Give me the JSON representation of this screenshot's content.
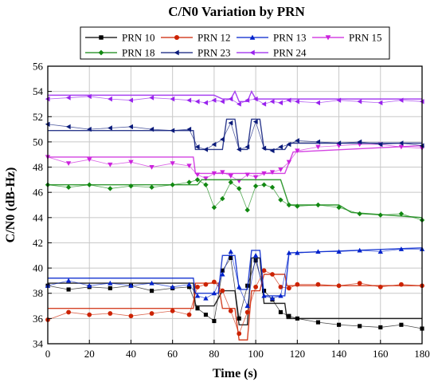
{
  "chart_data": {
    "type": "line",
    "title": "C/N0 Variation by PRN",
    "xlabel": "Time (s)",
    "ylabel": "C/N0 (dB-Hz)",
    "xlim": [
      0,
      180
    ],
    "ylim": [
      34,
      56
    ],
    "xticks": [
      "0",
      "20",
      "40",
      "60",
      "80",
      "100",
      "120",
      "140",
      "160",
      "180"
    ],
    "yticks": [
      "34",
      "36",
      "38",
      "40",
      "42",
      "44",
      "46",
      "48",
      "50",
      "52",
      "54",
      "56"
    ],
    "grid": true,
    "legend_position": "top",
    "series": [
      {
        "name": "PRN 10",
        "color": "#000000",
        "marker": "square",
        "markers": [
          [
            0,
            38.6
          ],
          [
            10,
            38.3
          ],
          [
            20,
            38.5
          ],
          [
            30,
            38.4
          ],
          [
            40,
            38.6
          ],
          [
            50,
            38.2
          ],
          [
            60,
            38.4
          ],
          [
            68,
            38.5
          ],
          [
            72,
            36.8
          ],
          [
            76,
            36.3
          ],
          [
            80,
            35.8
          ],
          [
            84,
            39.8
          ],
          [
            88,
            40.8
          ],
          [
            92,
            36.0
          ],
          [
            96,
            38.6
          ],
          [
            100,
            40.6
          ],
          [
            104,
            38.2
          ],
          [
            108,
            37.5
          ],
          [
            112,
            36.5
          ],
          [
            116,
            36.2
          ],
          [
            120,
            36.0
          ],
          [
            130,
            35.7
          ],
          [
            140,
            35.5
          ],
          [
            150,
            35.4
          ],
          [
            160,
            35.3
          ],
          [
            170,
            35.5
          ],
          [
            180,
            35.2
          ]
        ],
        "fit": [
          [
            0,
            38.8
          ],
          [
            70,
            38.8
          ],
          [
            71,
            37.0
          ],
          [
            80,
            37.0
          ],
          [
            84,
            38.2
          ],
          [
            90,
            38.2
          ],
          [
            92,
            35.5
          ],
          [
            96,
            35.5
          ],
          [
            98,
            40.8
          ],
          [
            102,
            40.8
          ],
          [
            104,
            37.2
          ],
          [
            114,
            37.2
          ],
          [
            115,
            36.0
          ],
          [
            180,
            36.0
          ]
        ]
      },
      {
        "name": "PRN 12",
        "color": "#cc2200",
        "marker": "circle",
        "markers": [
          [
            0,
            35.9
          ],
          [
            10,
            36.5
          ],
          [
            20,
            36.3
          ],
          [
            30,
            36.4
          ],
          [
            40,
            36.2
          ],
          [
            50,
            36.4
          ],
          [
            60,
            36.6
          ],
          [
            68,
            36.3
          ],
          [
            72,
            38.5
          ],
          [
            76,
            38.7
          ],
          [
            80,
            38.9
          ],
          [
            84,
            38.2
          ],
          [
            88,
            36.6
          ],
          [
            92,
            34.8
          ],
          [
            96,
            36.5
          ],
          [
            100,
            38.5
          ],
          [
            104,
            39.8
          ],
          [
            108,
            39.5
          ],
          [
            112,
            38.5
          ],
          [
            116,
            38.4
          ],
          [
            120,
            38.7
          ],
          [
            130,
            38.7
          ],
          [
            140,
            38.6
          ],
          [
            150,
            38.8
          ],
          [
            160,
            38.5
          ],
          [
            170,
            38.7
          ],
          [
            180,
            38.6
          ]
        ],
        "fit": [
          [
            0,
            36.8
          ],
          [
            70,
            36.8
          ],
          [
            71,
            38.8
          ],
          [
            82,
            38.8
          ],
          [
            84,
            36.8
          ],
          [
            90,
            36.8
          ],
          [
            92,
            34.3
          ],
          [
            96,
            34.3
          ],
          [
            98,
            38.2
          ],
          [
            102,
            38.2
          ],
          [
            104,
            39.5
          ],
          [
            114,
            39.5
          ],
          [
            115,
            38.6
          ],
          [
            180,
            38.6
          ]
        ]
      },
      {
        "name": "PRN 13",
        "color": "#0022cc",
        "marker": "triangle-up",
        "markers": [
          [
            0,
            38.6
          ],
          [
            10,
            39.0
          ],
          [
            20,
            38.6
          ],
          [
            30,
            38.8
          ],
          [
            40,
            38.6
          ],
          [
            50,
            38.8
          ],
          [
            60,
            38.5
          ],
          [
            68,
            38.7
          ],
          [
            72,
            37.8
          ],
          [
            76,
            37.6
          ],
          [
            80,
            38.0
          ],
          [
            84,
            39.5
          ],
          [
            88,
            41.3
          ],
          [
            92,
            38.5
          ],
          [
            96,
            37.0
          ],
          [
            100,
            41.0
          ],
          [
            104,
            37.8
          ],
          [
            108,
            37.6
          ],
          [
            112,
            37.8
          ],
          [
            116,
            41.2
          ],
          [
            120,
            41.2
          ],
          [
            130,
            41.3
          ],
          [
            140,
            41.3
          ],
          [
            150,
            41.4
          ],
          [
            160,
            41.3
          ],
          [
            170,
            41.5
          ],
          [
            180,
            41.5
          ]
        ],
        "fit": [
          [
            0,
            39.2
          ],
          [
            70,
            39.2
          ],
          [
            71,
            38.0
          ],
          [
            82,
            38.0
          ],
          [
            84,
            41.0
          ],
          [
            90,
            41.0
          ],
          [
            92,
            38.3
          ],
          [
            96,
            38.3
          ],
          [
            98,
            41.4
          ],
          [
            102,
            41.4
          ],
          [
            104,
            37.8
          ],
          [
            114,
            37.8
          ],
          [
            116,
            41.2
          ],
          [
            180,
            41.6
          ]
        ]
      },
      {
        "name": "PRN 15",
        "color": "#cc22dd",
        "marker": "triangle-down",
        "markers": [
          [
            0,
            48.8
          ],
          [
            10,
            48.3
          ],
          [
            20,
            48.6
          ],
          [
            30,
            48.2
          ],
          [
            40,
            48.4
          ],
          [
            50,
            48.0
          ],
          [
            60,
            48.3
          ],
          [
            68,
            48.1
          ],
          [
            72,
            47.4
          ],
          [
            76,
            47.1
          ],
          [
            80,
            47.5
          ],
          [
            84,
            47.6
          ],
          [
            88,
            47.3
          ],
          [
            92,
            46.9
          ],
          [
            96,
            47.4
          ],
          [
            100,
            47.2
          ],
          [
            104,
            47.5
          ],
          [
            108,
            47.6
          ],
          [
            112,
            47.8
          ],
          [
            116,
            48.4
          ],
          [
            120,
            49.3
          ],
          [
            130,
            49.6
          ],
          [
            140,
            49.7
          ],
          [
            150,
            49.8
          ],
          [
            160,
            49.8
          ],
          [
            170,
            49.6
          ],
          [
            180,
            49.5
          ]
        ],
        "fit": [
          [
            0,
            48.8
          ],
          [
            70,
            48.8
          ],
          [
            71,
            47.5
          ],
          [
            114,
            47.5
          ],
          [
            118,
            49.2
          ],
          [
            180,
            49.7
          ]
        ]
      },
      {
        "name": "PRN 18",
        "color": "#118811",
        "marker": "diamond",
        "markers": [
          [
            0,
            46.6
          ],
          [
            10,
            46.4
          ],
          [
            20,
            46.6
          ],
          [
            30,
            46.3
          ],
          [
            40,
            46.5
          ],
          [
            50,
            46.4
          ],
          [
            60,
            46.6
          ],
          [
            68,
            46.8
          ],
          [
            72,
            47.0
          ],
          [
            76,
            46.6
          ],
          [
            80,
            44.8
          ],
          [
            84,
            45.5
          ],
          [
            88,
            46.8
          ],
          [
            92,
            46.3
          ],
          [
            96,
            44.6
          ],
          [
            100,
            46.5
          ],
          [
            104,
            46.6
          ],
          [
            108,
            46.4
          ],
          [
            112,
            45.4
          ],
          [
            116,
            45.0
          ],
          [
            120,
            44.9
          ],
          [
            130,
            45.0
          ],
          [
            140,
            44.8
          ],
          [
            150,
            44.3
          ],
          [
            160,
            44.2
          ],
          [
            170,
            44.3
          ],
          [
            180,
            43.8
          ]
        ],
        "fit": [
          [
            0,
            46.6
          ],
          [
            72,
            46.6
          ],
          [
            74,
            47.0
          ],
          [
            112,
            47.0
          ],
          [
            116,
            45.0
          ],
          [
            140,
            45.0
          ],
          [
            146,
            44.4
          ],
          [
            180,
            44.0
          ]
        ]
      },
      {
        "name": "PRN 23",
        "color": "#0a1a7a",
        "marker": "triangle-left",
        "markers": [
          [
            0,
            51.4
          ],
          [
            10,
            51.2
          ],
          [
            20,
            51.0
          ],
          [
            30,
            51.1
          ],
          [
            40,
            51.2
          ],
          [
            50,
            51.0
          ],
          [
            60,
            50.9
          ],
          [
            68,
            51.0
          ],
          [
            72,
            49.6
          ],
          [
            76,
            49.4
          ],
          [
            80,
            49.8
          ],
          [
            84,
            50.2
          ],
          [
            88,
            51.5
          ],
          [
            92,
            49.4
          ],
          [
            96,
            49.6
          ],
          [
            100,
            51.6
          ],
          [
            104,
            49.5
          ],
          [
            108,
            49.3
          ],
          [
            112,
            49.6
          ],
          [
            116,
            49.8
          ],
          [
            120,
            50.1
          ],
          [
            130,
            50.0
          ],
          [
            140,
            49.9
          ],
          [
            150,
            50.0
          ],
          [
            160,
            49.8
          ],
          [
            170,
            49.9
          ],
          [
            180,
            49.7
          ]
        ],
        "fit": [
          [
            0,
            50.9
          ],
          [
            70,
            50.9
          ],
          [
            71,
            49.4
          ],
          [
            84,
            49.4
          ],
          [
            86,
            51.8
          ],
          [
            90,
            51.8
          ],
          [
            92,
            49.4
          ],
          [
            96,
            49.4
          ],
          [
            98,
            51.8
          ],
          [
            102,
            51.8
          ],
          [
            104,
            49.4
          ],
          [
            114,
            49.4
          ],
          [
            116,
            49.9
          ],
          [
            180,
            49.9
          ]
        ]
      },
      {
        "name": "PRN 24",
        "color": "#9922ee",
        "marker": "triangle-left",
        "markers": [
          [
            0,
            53.4
          ],
          [
            10,
            53.5
          ],
          [
            20,
            53.6
          ],
          [
            30,
            53.4
          ],
          [
            40,
            53.3
          ],
          [
            50,
            53.5
          ],
          [
            60,
            53.4
          ],
          [
            68,
            53.3
          ],
          [
            72,
            53.2
          ],
          [
            76,
            53.1
          ],
          [
            80,
            53.3
          ],
          [
            84,
            53.2
          ],
          [
            88,
            53.4
          ],
          [
            92,
            53.0
          ],
          [
            96,
            53.3
          ],
          [
            100,
            53.4
          ],
          [
            104,
            53.0
          ],
          [
            108,
            53.2
          ],
          [
            112,
            53.1
          ],
          [
            116,
            53.3
          ],
          [
            120,
            53.2
          ],
          [
            130,
            53.1
          ],
          [
            140,
            53.3
          ],
          [
            150,
            53.2
          ],
          [
            160,
            53.1
          ],
          [
            170,
            53.3
          ],
          [
            180,
            53.2
          ]
        ],
        "fit": [
          [
            0,
            53.7
          ],
          [
            80,
            53.7
          ],
          [
            84,
            53.4
          ],
          [
            88,
            53.4
          ],
          [
            90,
            54.0
          ],
          [
            92,
            53.2
          ],
          [
            96,
            53.2
          ],
          [
            98,
            54.0
          ],
          [
            100,
            53.4
          ],
          [
            120,
            53.4
          ],
          [
            180,
            53.4
          ]
        ]
      }
    ]
  }
}
